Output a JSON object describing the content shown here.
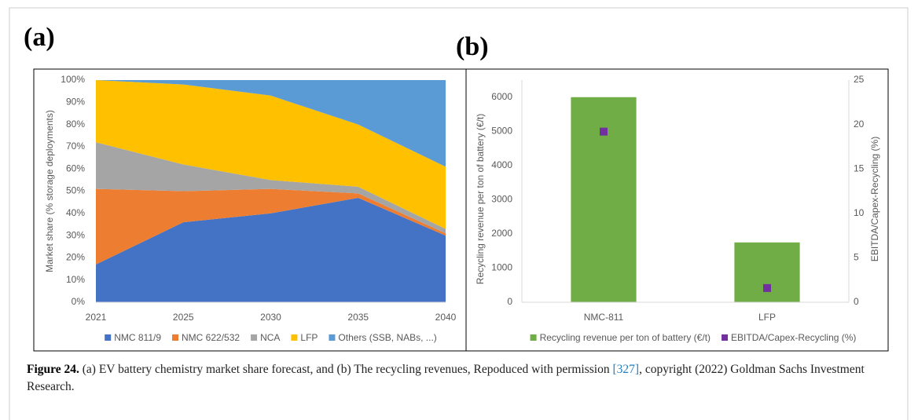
{
  "panel_labels": [
    "(a)",
    "(b)"
  ],
  "chart_data": [
    {
      "type": "stacked_area",
      "ylabel": "Market share (% storage deployments)",
      "categories": [
        "2021",
        "2025",
        "2030",
        "2035",
        "2040"
      ],
      "series": [
        {
          "name": "NMC 811/9",
          "color": "#4472c4",
          "values": [
            17,
            36,
            40,
            47,
            30
          ]
        },
        {
          "name": "NMC 622/532",
          "color": "#ed7d31",
          "values": [
            34,
            14,
            11,
            2,
            1
          ]
        },
        {
          "name": "NCA",
          "color": "#a5a5a5",
          "values": [
            21,
            12,
            4,
            3,
            2
          ]
        },
        {
          "name": "LFP",
          "color": "#ffc000",
          "values": [
            28,
            36,
            38,
            28,
            28
          ]
        },
        {
          "name": "Others (SSB, NABs, ...)",
          "color": "#5b9bd5",
          "values": [
            0,
            2,
            7,
            20,
            39
          ]
        }
      ],
      "ylim": [
        0,
        100
      ],
      "yticks": [
        {
          "value": 0,
          "label": "0%"
        },
        {
          "value": 10,
          "label": "10%"
        },
        {
          "value": 20,
          "label": "20%"
        },
        {
          "value": 30,
          "label": "30%"
        },
        {
          "value": 40,
          "label": "40%"
        },
        {
          "value": 50,
          "label": "50%"
        },
        {
          "value": 60,
          "label": "60%"
        },
        {
          "value": 70,
          "label": "70%"
        },
        {
          "value": 80,
          "label": "80%"
        },
        {
          "value": 90,
          "label": "90%"
        },
        {
          "value": 100,
          "label": "100%"
        }
      ],
      "legend": "bottom"
    },
    {
      "type": "bar_scatter",
      "ylabel": "Recycling revenue per ton of battery (€/t)",
      "y2label": "EBITDA/Capex-Recycling (%)",
      "categories": [
        "NMC-811",
        "LFP"
      ],
      "series": [
        {
          "name": "Recycling revenue per ton of battery (€/t)",
          "color": "#70ad47",
          "type": "bar",
          "values": [
            6000,
            1750
          ]
        },
        {
          "name": "EBITDA/Capex-Recycling (%)",
          "color": "#7030a0",
          "type": "scatter",
          "axis": "y2",
          "values": [
            19.2,
            1.6
          ]
        }
      ],
      "ylim": [
        0,
        6500
      ],
      "yticks": [
        0,
        1000,
        2000,
        3000,
        4000,
        5000,
        6000
      ],
      "y2lim": [
        0,
        25
      ],
      "y2ticks": [
        0,
        5,
        10,
        15,
        20,
        25
      ],
      "legend": "bottom"
    }
  ],
  "caption": {
    "label": "Figure 24.",
    "before": "(a) EV battery chemistry market share forecast, and (b) The recycling revenues, Repoduced with permission",
    "ref": "[327]",
    "after": ", copyright (2022) Goldman Sachs Investment Research."
  }
}
